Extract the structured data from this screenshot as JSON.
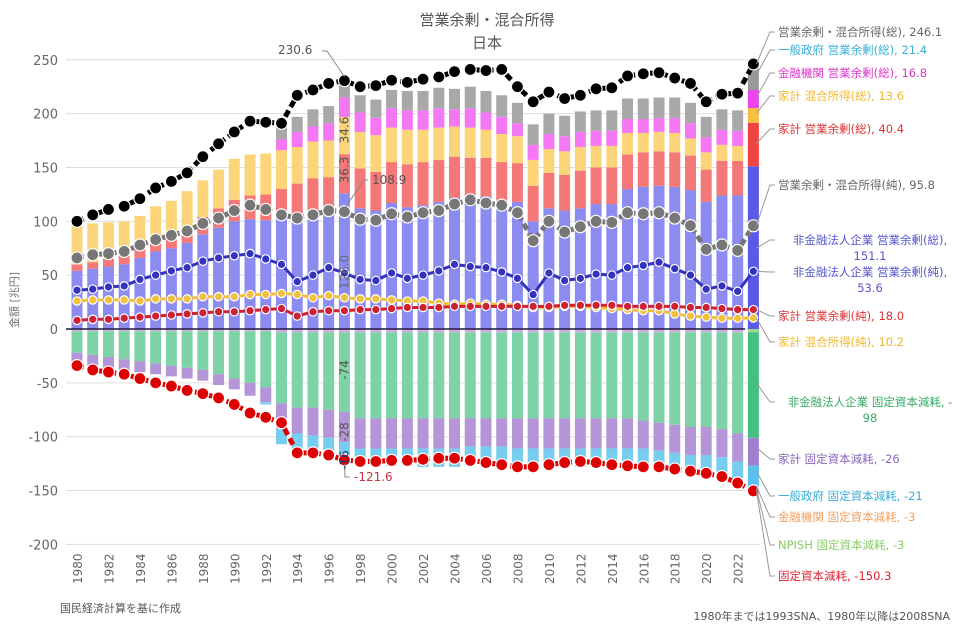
{
  "chart_data": {
    "type": "bar",
    "title": "営業余剰・混合所得",
    "subtitle": "日本",
    "xlabel": "",
    "ylabel": "金額 [兆円]",
    "ylim": [
      -200,
      260
    ],
    "yticks": [
      250,
      200,
      150,
      100,
      50,
      0,
      -50,
      -100,
      -150,
      -200
    ],
    "grid": true,
    "x": [
      1980,
      1981,
      1982,
      1983,
      1984,
      1985,
      1986,
      1987,
      1988,
      1989,
      1990,
      1991,
      1992,
      1993,
      1994,
      1995,
      1996,
      1997,
      1998,
      1999,
      2000,
      2001,
      2002,
      2003,
      2004,
      2005,
      2006,
      2007,
      2008,
      2009,
      2010,
      2011,
      2012,
      2013,
      2014,
      2015,
      2016,
      2017,
      2018,
      2019,
      2020,
      2021,
      2022,
      2023
    ],
    "xtick_labels": [
      "1980",
      "1982",
      "1984",
      "1986",
      "1988",
      "1990",
      "1992",
      "1994",
      "1996",
      "1998",
      "2000",
      "2002",
      "2004",
      "2006",
      "2008",
      "2010",
      "2012",
      "2014",
      "2016",
      "2018",
      "2020",
      "2022"
    ],
    "stacked_positive": [
      {
        "name": "非金融法人企業 営業余剰(総)",
        "color": "#8c8cf0",
        "last_color": "#5a5ae8",
        "values": [
          54,
          56,
          58,
          60,
          66,
          72,
          75,
          80,
          88,
          94,
          100,
          102,
          101,
          102,
          99,
          102,
          105,
          126,
          112,
          110,
          117,
          113,
          115,
          118,
          122,
          121,
          123,
          119,
          118,
          100,
          112,
          110,
          112,
          116,
          116,
          130,
          132,
          133,
          132,
          129,
          118,
          124,
          124,
          151.1
        ]
      },
      {
        "name": "家計 営業余剰(総)",
        "color": "#f47878",
        "last_color": "#ee4444",
        "values": [
          6,
          6,
          7,
          8,
          9,
          10,
          12,
          14,
          16,
          18,
          20,
          22,
          24,
          28,
          36,
          38,
          36,
          36.3,
          37,
          36,
          38,
          40,
          40,
          39,
          38,
          38,
          36,
          36,
          36,
          33,
          33,
          33,
          35,
          34,
          34,
          32,
          32,
          32,
          32,
          32,
          30,
          32,
          32,
          40.4
        ]
      },
      {
        "name": "家計 混合所得(総)",
        "color": "#fcd57a",
        "last_color": "#f8c040",
        "values": [
          36,
          36,
          34,
          32,
          30,
          32,
          32,
          34,
          34,
          36,
          38,
          38,
          38,
          36,
          34,
          34,
          34,
          34.6,
          34,
          34,
          32,
          32,
          30,
          30,
          28,
          28,
          26,
          26,
          25,
          24,
          22,
          22,
          22,
          20,
          20,
          20,
          18,
          18,
          18,
          16,
          16,
          15,
          14,
          13.6
        ]
      },
      {
        "name": "金融機関 営業余剰(総)",
        "color": "#f478f4",
        "last_color": "#ee44ee",
        "values": [
          0,
          0,
          0,
          0,
          0,
          0,
          0,
          0,
          0,
          0,
          0,
          0,
          0,
          10,
          14,
          14,
          16,
          18,
          18,
          16,
          18,
          18,
          18,
          18,
          16,
          18,
          16,
          16,
          12,
          14,
          14,
          14,
          14,
          14,
          14,
          13,
          13,
          13,
          14,
          14,
          14,
          14,
          14,
          16.8
        ]
      },
      {
        "name": "一般政府 営業余剰(総)",
        "color": "#a8a8a8",
        "last_color": "#999999",
        "values": [
          0,
          0,
          0,
          0,
          0,
          0,
          0,
          0,
          0,
          0,
          0,
          0,
          0,
          14,
          14,
          16,
          16,
          16,
          16,
          17,
          17,
          18,
          18,
          19,
          19,
          20,
          20,
          20,
          19,
          19,
          19,
          19,
          19,
          19,
          19,
          19,
          19,
          19,
          19,
          19,
          19,
          19,
          19,
          21.4
        ]
      }
    ],
    "stacked_negative": [
      {
        "name": "NPISH 固定資本減耗",
        "color": "#dba6e8",
        "last_color": "#9ad88a",
        "values": [
          -2,
          -2,
          -2,
          -2,
          -2,
          -2,
          -2,
          -2,
          -2,
          -2,
          -2,
          -2,
          -2,
          -3,
          -3,
          -3,
          -3,
          -3,
          -3,
          -3,
          -3,
          -3,
          -3,
          -3,
          -3,
          -3,
          -3,
          -3,
          -3,
          -3,
          -3,
          -3,
          -3,
          -3,
          -3,
          -3,
          -3,
          -3,
          -3,
          -3,
          -3,
          -3,
          -3,
          -3
        ]
      },
      {
        "name": "非金融法人企業 固定資本減耗",
        "color": "#7ed3a6",
        "last_color": "#44c080",
        "values": [
          -20,
          -22,
          -24,
          -26,
          -28,
          -30,
          -32,
          -34,
          -36,
          -40,
          -44,
          -48,
          -52,
          -66,
          -70,
          -70,
          -72,
          -74,
          -80,
          -80,
          -80,
          -80,
          -80,
          -80,
          -80,
          -80,
          -80,
          -80,
          -80,
          -80,
          -80,
          -80,
          -80,
          -80,
          -80,
          -80,
          -82,
          -84,
          -86,
          -88,
          -88,
          -90,
          -94,
          -98
        ]
      },
      {
        "name": "家計 固定資本減耗",
        "color": "#b395d8",
        "last_color": "#a080d0",
        "values": [
          -10,
          -10,
          -10,
          -10,
          -10,
          -10,
          -10,
          -10,
          -10,
          -10,
          -10,
          -12,
          -14,
          -24,
          -24,
          -26,
          -26,
          -28,
          -28,
          -28,
          -28,
          -28,
          -28,
          -28,
          -28,
          -26,
          -26,
          -26,
          -28,
          -28,
          -28,
          -28,
          -28,
          -28,
          -28,
          -28,
          -26,
          -26,
          -26,
          -26,
          -26,
          -26,
          -26,
          -26
        ]
      },
      {
        "name": "一般政府 固定資本減耗",
        "color": "#76cdf0",
        "last_color": "#5ac0ee",
        "values": [
          0,
          0,
          0,
          0,
          0,
          0,
          0,
          0,
          0,
          0,
          0,
          0,
          -2,
          -14,
          -14,
          -14,
          -14,
          -16,
          -16,
          -16,
          -16,
          -16,
          -17,
          -17,
          -17,
          -17,
          -17,
          -17,
          -17,
          -17,
          -17,
          -17,
          -17,
          -17,
          -17,
          -17,
          -17,
          -17,
          -18,
          -18,
          -18,
          -19,
          -20,
          -21
        ]
      }
    ],
    "lines": [
      {
        "name": "営業余剰・混合所得(総)",
        "color": "#000000",
        "dash": true,
        "values": [
          100,
          106,
          111,
          114,
          121,
          131,
          137,
          145,
          160,
          172,
          183,
          193,
          192,
          191,
          217,
          222,
          228,
          230.6,
          225,
          226,
          231,
          229,
          232,
          234,
          239,
          241,
          240,
          241,
          225,
          211,
          220,
          214,
          217,
          223,
          224,
          235,
          237,
          238,
          233,
          228,
          211,
          218,
          219,
          246.1
        ]
      },
      {
        "name": "営業余剰・混合所得(純)",
        "color": "#777777",
        "dash": true,
        "values": [
          66,
          69,
          70,
          72,
          78,
          83,
          87,
          91,
          98,
          103,
          110,
          115,
          111,
          106,
          103,
          106,
          110,
          108.9,
          102,
          101,
          107,
          104,
          108,
          110,
          116,
          120,
          117,
          115,
          108,
          82,
          100,
          90,
          95,
          100,
          99,
          108,
          107,
          108,
          103,
          96,
          74,
          78,
          73,
          95.8
        ]
      },
      {
        "name": "非金融法人企業 営業余剰(純)",
        "color": "#3333bb",
        "dash": false,
        "values": [
          36,
          37,
          39,
          40,
          46,
          50,
          54,
          57,
          63,
          66,
          68,
          70,
          65,
          60,
          44,
          50,
          57,
          52,
          46,
          45,
          52,
          47,
          50,
          54,
          60,
          58,
          57,
          53,
          47,
          32,
          52,
          45,
          47,
          51,
          50,
          57,
          59,
          62,
          56,
          50,
          37,
          40,
          35,
          53.6
        ]
      },
      {
        "name": "家計 混合所得(純)",
        "color": "#f0c040",
        "dash": false,
        "values": [
          26,
          27,
          27,
          27,
          26,
          28,
          28,
          28,
          30,
          30,
          30,
          32,
          32,
          33,
          32,
          29,
          31,
          29,
          28,
          28,
          27,
          26,
          26,
          24,
          23,
          24,
          23,
          23,
          22,
          20,
          20,
          21,
          21,
          20,
          19,
          18,
          17,
          17,
          14,
          12,
          11,
          10,
          10,
          10.2
        ]
      },
      {
        "name": "家計 営業余剰(純)",
        "color": "#cc2233",
        "dash": false,
        "values": [
          8,
          9,
          9,
          10,
          11,
          12,
          13,
          14,
          15,
          16,
          16,
          17,
          18,
          19,
          12,
          16,
          17,
          17,
          18,
          18,
          19,
          20,
          20,
          20,
          21,
          21,
          21,
          21,
          21,
          21,
          21,
          22,
          22,
          22,
          22,
          21,
          21,
          21,
          21,
          20,
          20,
          19,
          18,
          18.0
        ]
      },
      {
        "name": "固定資本減耗",
        "color": "#dd0000",
        "dash": true,
        "values": [
          -34,
          -38,
          -40,
          -42,
          -46,
          -50,
          -53,
          -57,
          -60,
          -64,
          -70,
          -78,
          -82,
          -87,
          -115,
          -115,
          -117,
          -121.6,
          -123,
          -123,
          -122,
          -122,
          -121,
          -120,
          -120,
          -122,
          -124,
          -126,
          -128,
          -128,
          -126,
          -124,
          -123,
          -124,
          -126,
          -127,
          -128,
          -128,
          -130,
          -132,
          -134,
          -137,
          -143,
          -150.3
        ]
      }
    ],
    "annotations": [
      {
        "text": "230.6",
        "year": 1997,
        "series": "営業余剰・混合所得(総)"
      },
      {
        "text": "108.9",
        "year": 1997,
        "series": "営業余剰・混合所得(純)"
      },
      {
        "text": "-121.6",
        "year": 1997,
        "series": "固定資本減耗"
      },
      {
        "text": "34.6",
        "year": 1997,
        "segment": "家計 混合所得(総)"
      },
      {
        "text": "36.3",
        "year": 1997,
        "segment": "家計 営業余剰(総)"
      },
      {
        "text": "126.0",
        "year": 1997,
        "segment": "非金融法人企業 営業余剰(総)"
      },
      {
        "text": "-74",
        "year": 1997,
        "segment": "非金融法人企業 固定資本減耗"
      },
      {
        "text": "-28",
        "year": 1997,
        "segment": "家計 固定資本減耗"
      },
      {
        "text": "-16",
        "year": 1997,
        "segment": "一般政府 固定資本減耗"
      }
    ],
    "legend_labels": [
      {
        "text": "営業余剰・混合所得(総), 246.1",
        "color": "#666666"
      },
      {
        "text": "一般政府 営業余剰(総), 21.4",
        "color": "#3aaed8"
      },
      {
        "text": "金融機関 営業余剰(総), 16.8",
        "color": "#dd33cc"
      },
      {
        "text": "家計 混合所得(総), 13.6",
        "color": "#f0b830"
      },
      {
        "text": "家計 営業余剰(総), 40.4",
        "color": "#dd3333"
      },
      {
        "text": "営業余剰・混合所得(純), 95.8",
        "color": "#666666"
      },
      {
        "text": "非金融法人企業 営業余剰(総),",
        "text2": "151.1",
        "color": "#5555cc"
      },
      {
        "text": "非金融法人企業 営業余剰(純),",
        "text2": "53.6",
        "color": "#5555cc"
      },
      {
        "text": "家計 営業余剰(純), 18.0",
        "color": "#dd3333"
      },
      {
        "text": "家計 混合所得(純), 10.2",
        "color": "#f0b830"
      },
      {
        "text": "非金融法人企業 固定資本減耗, -",
        "text2": "98",
        "color": "#33aa66"
      },
      {
        "text": "家計 固定資本減耗, -26",
        "color": "#8866bb"
      },
      {
        "text": "一般政府 固定資本減耗, -21",
        "color": "#3aaed8"
      },
      {
        "text": "金融機関 固定資本減耗, -3",
        "color": "#f0a060"
      },
      {
        "text": "NPISH 固定資本減耗, -3",
        "color": "#88cc66"
      },
      {
        "text": "固定資本減耗, -150.3",
        "color": "#dd2233"
      }
    ]
  },
  "notes": {
    "source": "国民経済計算を基に作成",
    "sna": "1980年までは1993SNA、1980年以降は2008SNA"
  }
}
